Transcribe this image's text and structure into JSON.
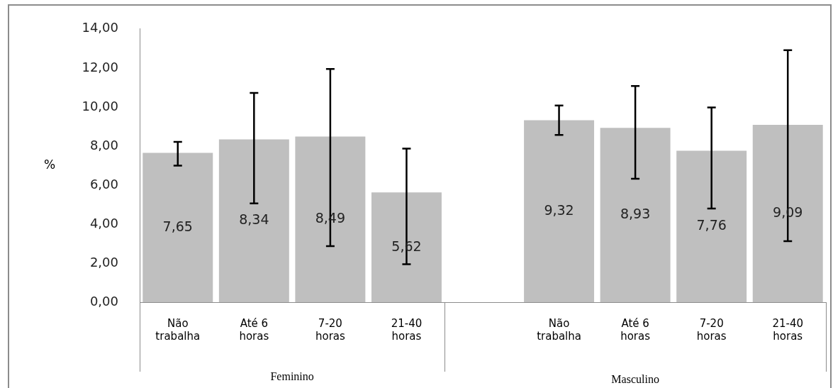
{
  "chart_data": {
    "type": "bar",
    "categories": [
      "Não trabalha",
      "Até 6 horas",
      "7-20 horas",
      "21-40 horas",
      null,
      "Não trabalha",
      "Até 6 horas",
      "7-20 horas",
      "21-40 horas"
    ],
    "values": [
      7.65,
      8.34,
      8.49,
      5.62,
      null,
      9.32,
      8.93,
      7.76,
      9.09
    ],
    "value_labels": [
      "7,65",
      "8,34",
      "8,49",
      "5,62",
      null,
      "9,32",
      "8,93",
      "7,76",
      "9,09"
    ],
    "errors": [
      [
        7.0,
        8.21
      ],
      [
        5.06,
        10.72
      ],
      [
        2.87,
        11.95
      ],
      [
        1.94,
        7.87
      ],
      null,
      [
        8.57,
        10.08
      ],
      [
        6.32,
        11.08
      ],
      [
        4.8,
        9.98
      ],
      [
        3.13,
        12.91
      ]
    ],
    "color": "#bfbfbf",
    "ylabel": "%",
    "ylim": [
      0,
      14
    ],
    "yticks": [
      {
        "value": 0,
        "label": "0,00"
      },
      {
        "value": 2,
        "label": "2,00"
      },
      {
        "value": 4,
        "label": "4,00"
      },
      {
        "value": 6,
        "label": "6,00"
      },
      {
        "value": 8,
        "label": "8,00"
      },
      {
        "value": 10,
        "label": "10,00"
      },
      {
        "value": 12,
        "label": "12,00"
      },
      {
        "value": 14,
        "label": "14,00"
      }
    ],
    "annotations": [
      "Feminino",
      "Masculino"
    ],
    "grid": false,
    "legend": false
  }
}
